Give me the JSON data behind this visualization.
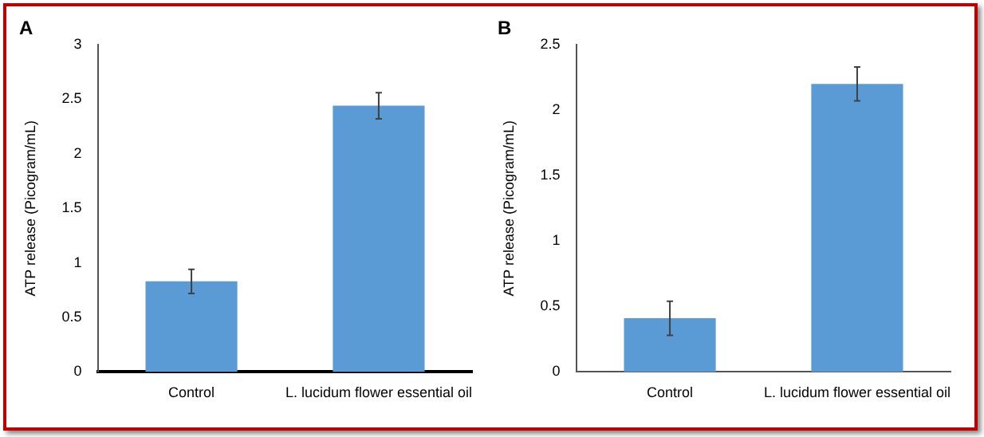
{
  "chart_data": [
    {
      "type": "bar",
      "title": "A",
      "ylabel": "ATP release (Picogram/mL)",
      "categories": [
        "Control",
        "L. lucidum flower essential oil"
      ],
      "values": [
        0.83,
        2.44
      ],
      "errors": [
        0.11,
        0.12
      ],
      "color": "#5b9bd5",
      "ylim": [
        0,
        3
      ],
      "yticks": [
        0,
        0.5,
        1,
        1.5,
        2,
        2.5,
        3
      ],
      "grid": false
    },
    {
      "type": "bar",
      "title": "B",
      "ylabel": "ATP release (Picogram/mL)",
      "categories": [
        "Control",
        "L. lucidum flower essential oil"
      ],
      "values": [
        0.41,
        2.2
      ],
      "errors": [
        0.13,
        0.13
      ],
      "color": "#5b9bd5",
      "ylim": [
        0,
        2.5
      ],
      "yticks": [
        0,
        0.5,
        1,
        1.5,
        2,
        2.5
      ],
      "grid": false
    }
  ]
}
